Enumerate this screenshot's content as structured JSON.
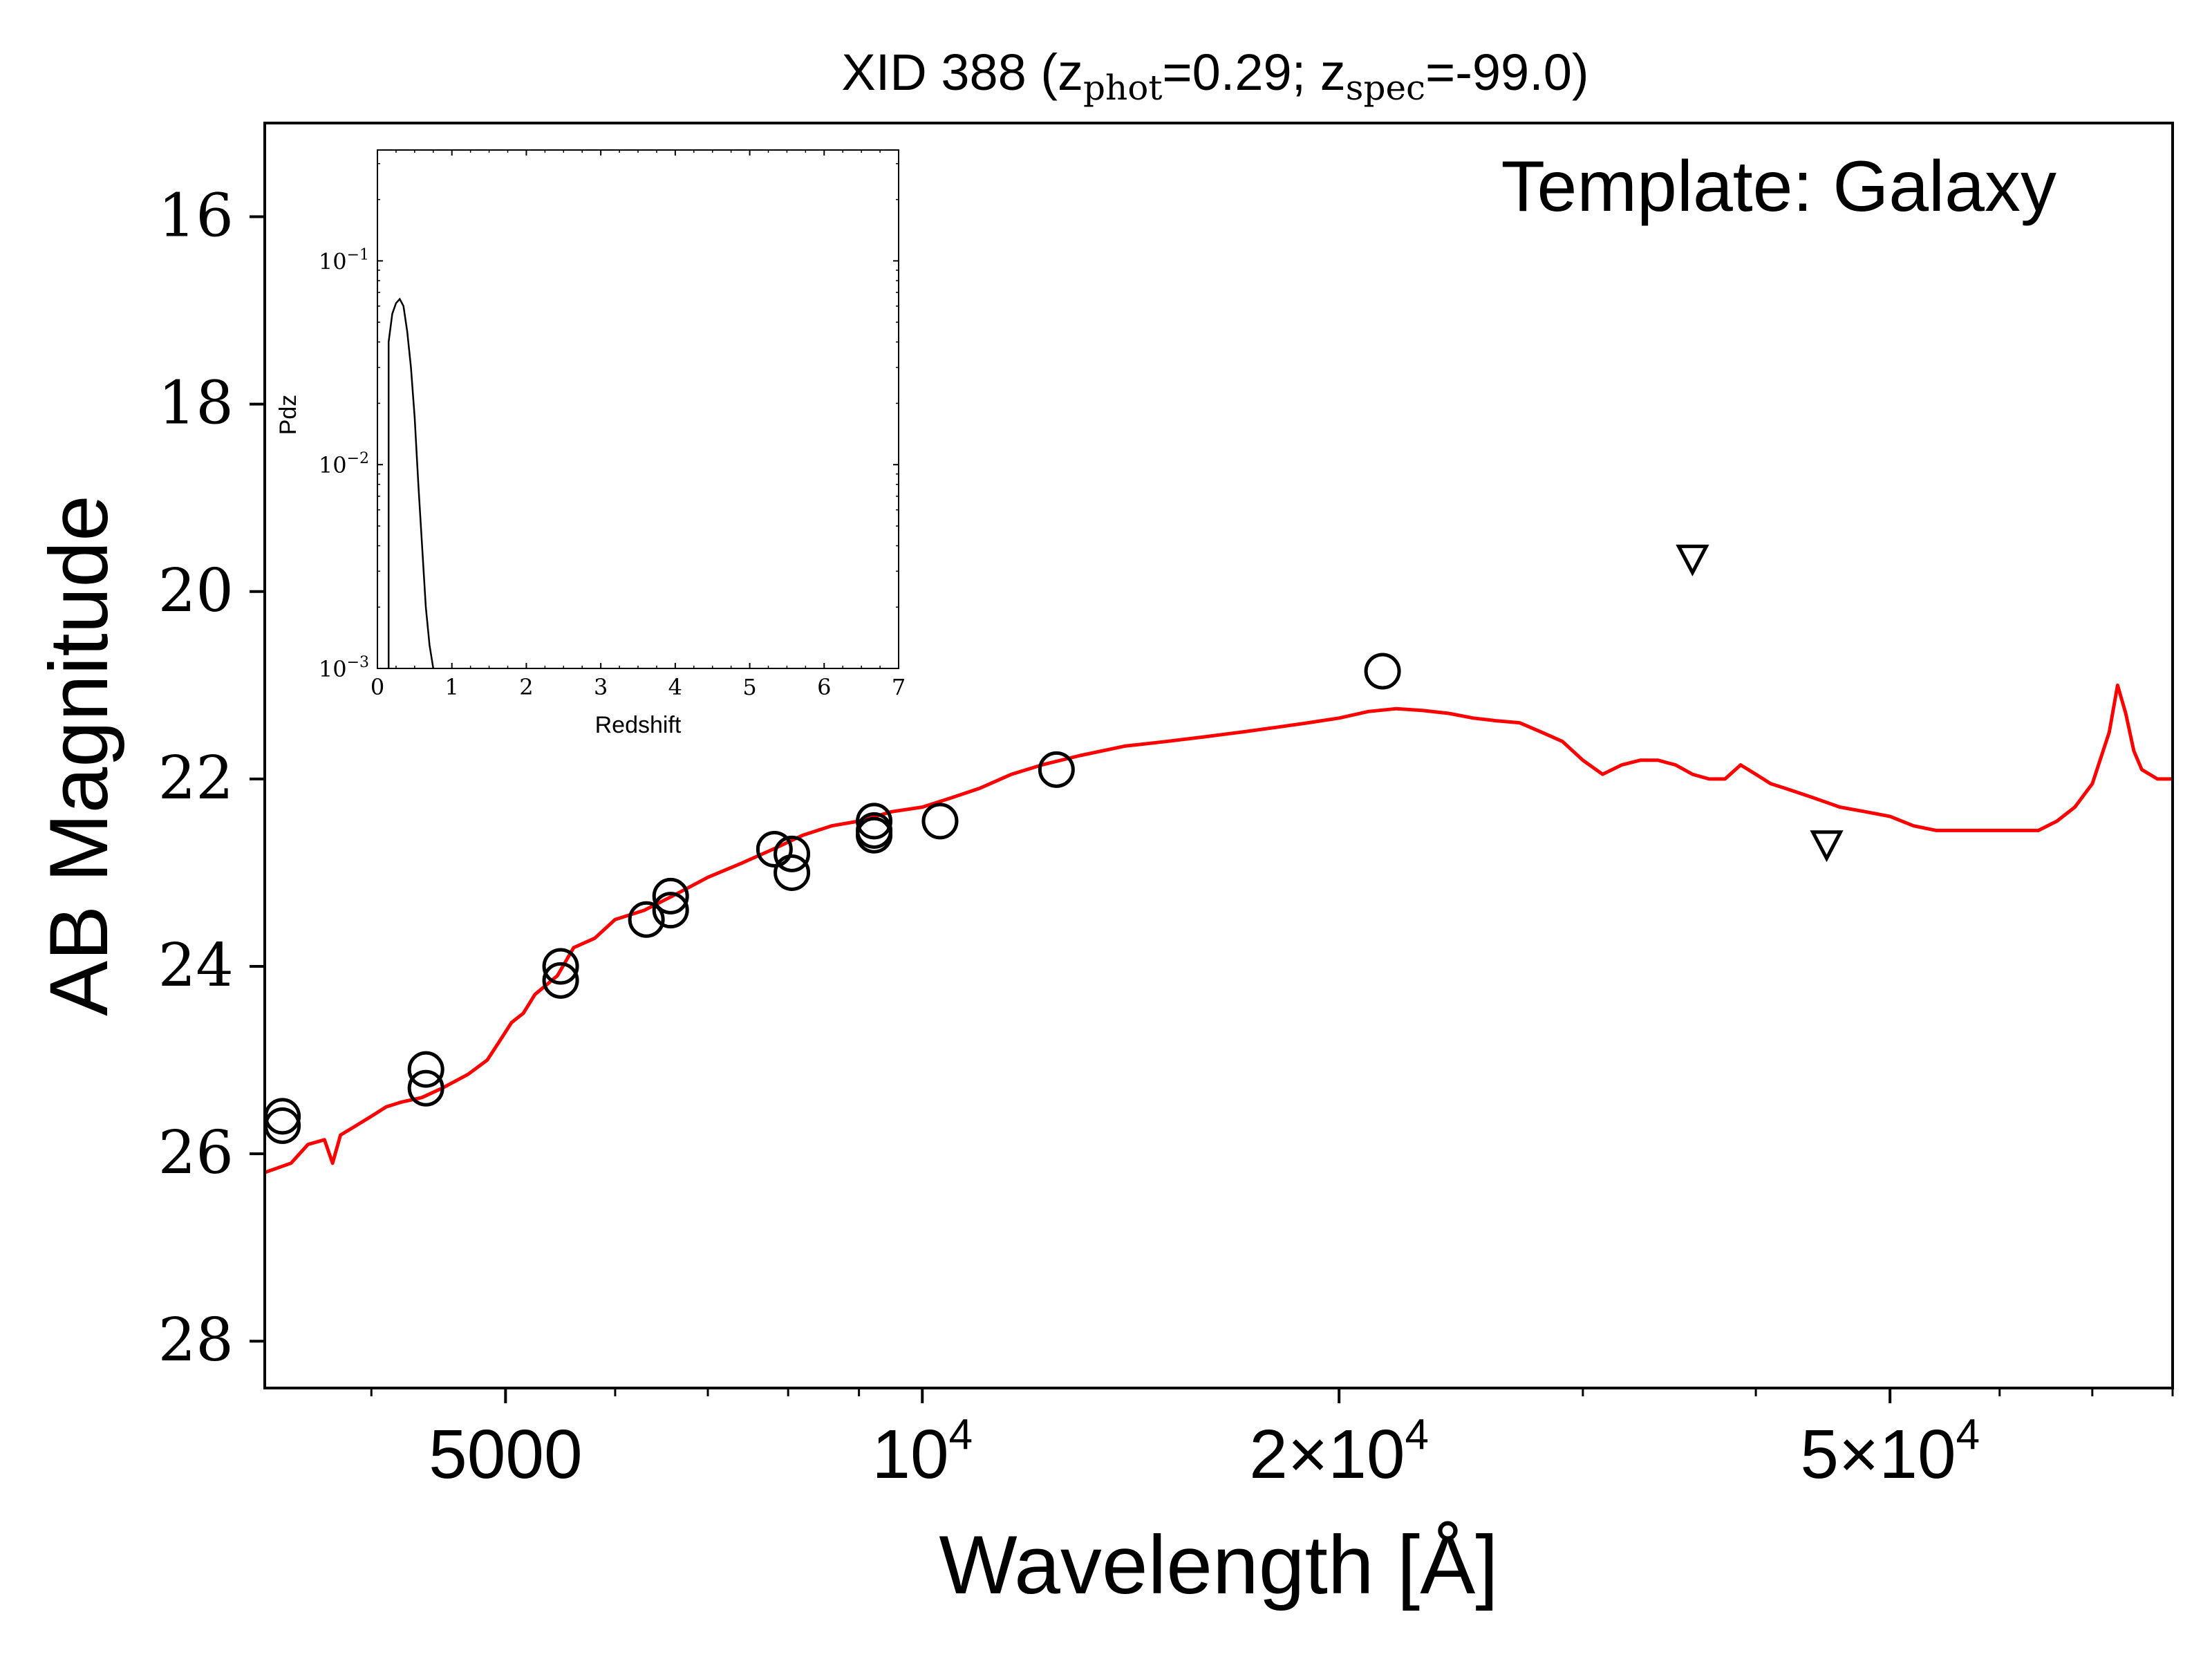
{
  "chart_data": [
    {
      "type": "scatter",
      "title": "XID 388 (z",
      "title_parts": {
        "prefix": "XID 388 (z",
        "sub1": "phot",
        "mid": "=0.29; z",
        "sub2": "spec",
        "suffix": "=-99.0)"
      },
      "annotation": "Template: Galaxy",
      "xlabel": "Wavelength [Å]",
      "ylabel": "AB Magnitude",
      "x_scale": "log",
      "xlim": [
        3350,
        80000
      ],
      "ylim": [
        28.5,
        15.0
      ],
      "x_ticks": [
        {
          "value": 5000,
          "label": "5000"
        },
        {
          "value": 10000,
          "label": "10",
          "sup": "4"
        },
        {
          "value": 20000,
          "label": "2×10",
          "sup": "4"
        },
        {
          "value": 50000,
          "label": "5×10",
          "sup": "4"
        }
      ],
      "y_ticks": [
        16,
        18,
        20,
        22,
        24,
        26,
        28
      ],
      "grid": false,
      "series": [
        {
          "kind": "line",
          "color": "#ff0000",
          "x": [
            3350,
            3500,
            3600,
            3700,
            3750,
            3800,
            3900,
            4000,
            4100,
            4200,
            4350,
            4500,
            4700,
            4850,
            4950,
            5050,
            5150,
            5250,
            5350,
            5450,
            5600,
            5800,
            6000,
            6300,
            6600,
            7000,
            7400,
            7800,
            8200,
            8600,
            9000,
            9500,
            10000,
            10500,
            11000,
            11600,
            12200,
            13000,
            14000,
            15000,
            16000,
            17000,
            18000,
            19000,
            20000,
            21000,
            22000,
            23000,
            24000,
            25000,
            26000,
            27000,
            28000,
            29000,
            30000,
            31000,
            32000,
            33000,
            34000,
            35000,
            36000,
            37000,
            38000,
            39000,
            40000,
            41000,
            42000,
            43000,
            44000,
            45000,
            46000,
            48000,
            50000,
            52000,
            54000,
            56000,
            58000,
            60000,
            62000,
            64000,
            66000,
            68000,
            70000,
            72000,
            73000,
            74000,
            75000,
            76000,
            78000,
            80000
          ],
          "y": [
            26.2,
            26.1,
            25.9,
            25.85,
            26.1,
            25.8,
            25.7,
            25.6,
            25.5,
            25.45,
            25.4,
            25.3,
            25.15,
            25.0,
            24.8,
            24.6,
            24.5,
            24.3,
            24.2,
            24.1,
            23.8,
            23.7,
            23.5,
            23.4,
            23.25,
            23.05,
            22.9,
            22.75,
            22.6,
            22.5,
            22.45,
            22.35,
            22.3,
            22.2,
            22.1,
            21.95,
            21.85,
            21.75,
            21.65,
            21.6,
            21.55,
            21.5,
            21.45,
            21.4,
            21.35,
            21.28,
            21.25,
            21.27,
            21.3,
            21.35,
            21.38,
            21.4,
            21.5,
            21.6,
            21.8,
            21.95,
            21.85,
            21.8,
            21.8,
            21.85,
            21.95,
            22.0,
            22.0,
            21.85,
            21.95,
            22.05,
            22.1,
            22.15,
            22.2,
            22.25,
            22.3,
            22.35,
            22.4,
            22.5,
            22.55,
            22.55,
            22.55,
            22.55,
            22.55,
            22.55,
            22.45,
            22.3,
            22.05,
            21.5,
            21.0,
            21.3,
            21.7,
            21.9,
            22.0,
            22.0
          ]
        },
        {
          "kind": "points",
          "marker": "circle",
          "x": [
            3450,
            3450,
            4380,
            4380,
            5480,
            5480,
            6320,
            6580,
            6580,
            7820,
            8050,
            8050,
            9230,
            9230,
            9230,
            10300,
            12500,
            21500
          ],
          "y": [
            25.6,
            25.7,
            25.1,
            25.3,
            24.0,
            24.15,
            23.5,
            23.25,
            23.4,
            22.75,
            22.8,
            23.0,
            22.45,
            22.55,
            22.6,
            22.45,
            21.9,
            20.85
          ]
        },
        {
          "kind": "points",
          "marker": "triangle-down",
          "x": [
            36000,
            45000
          ],
          "y": [
            19.65,
            22.7
          ]
        }
      ]
    },
    {
      "type": "line",
      "title": "",
      "xlabel": "Redshift",
      "ylabel": "Pdz",
      "x_scale": "linear",
      "y_scale": "log",
      "xlim": [
        0,
        7
      ],
      "ylim": [
        0.001,
        0.35
      ],
      "x_ticks": [
        0,
        1,
        2,
        3,
        4,
        5,
        6,
        7
      ],
      "y_ticks": [
        {
          "value": 0.1,
          "label": "10",
          "sup": "−1"
        },
        {
          "value": 0.01,
          "label": "10",
          "sup": "−2"
        },
        {
          "value": 0.001,
          "label": "10",
          "sup": "−3"
        }
      ],
      "grid": false,
      "series": [
        {
          "color": "#000000",
          "x": [
            0.15,
            0.15,
            0.2,
            0.25,
            0.3,
            0.35,
            0.4,
            0.45,
            0.5,
            0.55,
            0.6,
            0.65,
            0.7,
            0.75
          ],
          "y": [
            0.001,
            0.04,
            0.055,
            0.062,
            0.065,
            0.06,
            0.045,
            0.03,
            0.017,
            0.008,
            0.004,
            0.002,
            0.0013,
            0.001
          ]
        }
      ]
    }
  ]
}
